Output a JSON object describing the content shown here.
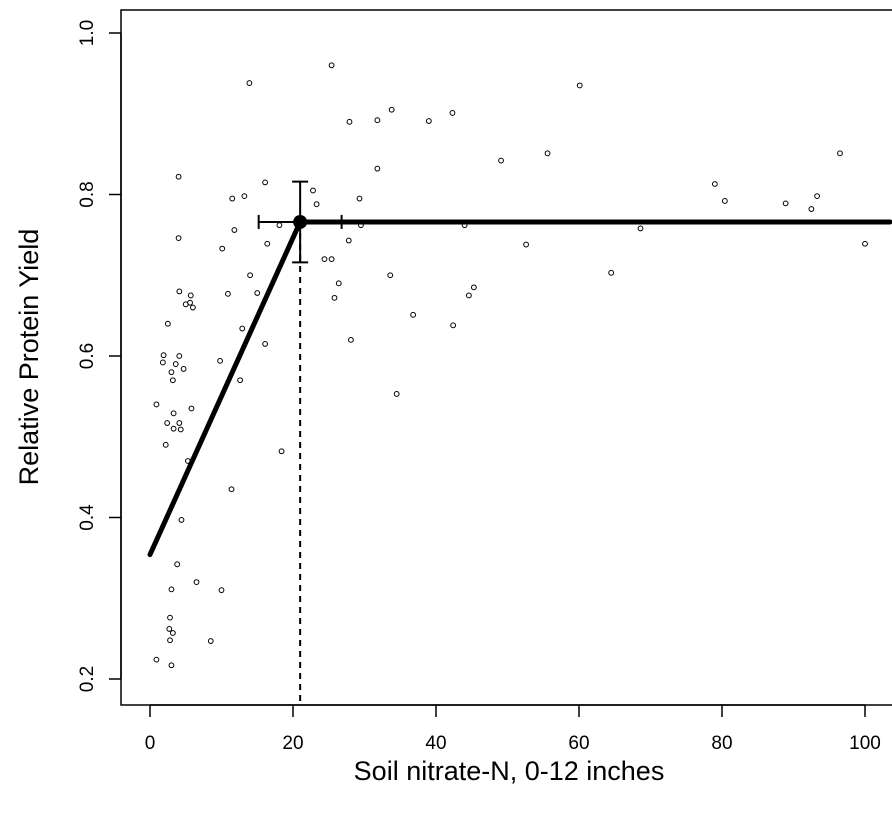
{
  "chart_data": {
    "type": "scatter",
    "xlabel": "Soil nitrate-N, 0-12 inches",
    "ylabel": "Relative Protein Yield",
    "x_ticks": [
      0,
      20,
      40,
      60,
      80,
      100
    ],
    "y_ticks": [
      0.2,
      0.4,
      0.6,
      0.8,
      1.0
    ],
    "x_tick_labels": [
      "0",
      "20",
      "40",
      "60",
      "80",
      "100"
    ],
    "y_tick_labels": [
      "0.2",
      "0.4",
      "0.6",
      "0.8",
      "1.0"
    ],
    "xlim": [
      -4,
      103.5
    ],
    "ylim": [
      0.185,
      1.03
    ],
    "grid": false,
    "points": [
      [
        0.9,
        0.224
      ],
      [
        0.9,
        0.54
      ],
      [
        1.8,
        0.592
      ],
      [
        1.9,
        0.601
      ],
      [
        2.2,
        0.49
      ],
      [
        2.4,
        0.517
      ],
      [
        2.5,
        0.64
      ],
      [
        2.7,
        0.262
      ],
      [
        2.8,
        0.276
      ],
      [
        2.8,
        0.248
      ],
      [
        3.0,
        0.217
      ],
      [
        3.0,
        0.311
      ],
      [
        3.0,
        0.58
      ],
      [
        3.2,
        0.257
      ],
      [
        3.2,
        0.57
      ],
      [
        3.3,
        0.51
      ],
      [
        3.3,
        0.529
      ],
      [
        3.6,
        0.59
      ],
      [
        3.8,
        0.342
      ],
      [
        4.0,
        0.822
      ],
      [
        4.0,
        0.746
      ],
      [
        4.1,
        0.68
      ],
      [
        4.1,
        0.6
      ],
      [
        4.1,
        0.517
      ],
      [
        4.3,
        0.509
      ],
      [
        4.4,
        0.397
      ],
      [
        4.7,
        0.584
      ],
      [
        5.0,
        0.664
      ],
      [
        5.3,
        0.47
      ],
      [
        5.6,
        0.666
      ],
      [
        5.7,
        0.675
      ],
      [
        5.8,
        0.535
      ],
      [
        6.0,
        0.66
      ],
      [
        6.5,
        0.32
      ],
      [
        8.5,
        0.247
      ],
      [
        9.8,
        0.594
      ],
      [
        10.0,
        0.31
      ],
      [
        10.1,
        0.733
      ],
      [
        10.9,
        0.677
      ],
      [
        11.4,
        0.435
      ],
      [
        11.5,
        0.795
      ],
      [
        11.8,
        0.756
      ],
      [
        12.6,
        0.57
      ],
      [
        12.9,
        0.634
      ],
      [
        13.2,
        0.798
      ],
      [
        13.9,
        0.938
      ],
      [
        14.0,
        0.7
      ],
      [
        15.0,
        0.678
      ],
      [
        16.1,
        0.615
      ],
      [
        16.1,
        0.815
      ],
      [
        16.4,
        0.739
      ],
      [
        18.1,
        0.762
      ],
      [
        18.4,
        0.482
      ],
      [
        22.8,
        0.805
      ],
      [
        23.3,
        0.788
      ],
      [
        24.4,
        0.72
      ],
      [
        25.4,
        0.72
      ],
      [
        25.4,
        0.96
      ],
      [
        25.8,
        0.672
      ],
      [
        26.4,
        0.69
      ],
      [
        27.8,
        0.743
      ],
      [
        27.9,
        0.89
      ],
      [
        28.1,
        0.62
      ],
      [
        29.3,
        0.795
      ],
      [
        29.5,
        0.762
      ],
      [
        31.8,
        0.892
      ],
      [
        31.8,
        0.832
      ],
      [
        33.6,
        0.7
      ],
      [
        33.8,
        0.905
      ],
      [
        34.5,
        0.553
      ],
      [
        36.8,
        0.651
      ],
      [
        39.0,
        0.891
      ],
      [
        42.3,
        0.901
      ],
      [
        42.4,
        0.638
      ],
      [
        44.0,
        0.762
      ],
      [
        44.6,
        0.675
      ],
      [
        45.3,
        0.685
      ],
      [
        49.1,
        0.842
      ],
      [
        52.6,
        0.738
      ],
      [
        55.6,
        0.851
      ],
      [
        60.1,
        0.935
      ],
      [
        64.5,
        0.703
      ],
      [
        68.6,
        0.758
      ],
      [
        79.0,
        0.813
      ],
      [
        80.4,
        0.792
      ],
      [
        88.9,
        0.789
      ],
      [
        92.5,
        0.782
      ],
      [
        93.3,
        0.798
      ],
      [
        96.5,
        0.851
      ],
      [
        100.0,
        0.739
      ]
    ],
    "model_line": [
      [
        0,
        0.354
      ],
      [
        21,
        0.766
      ],
      [
        103.5,
        0.766
      ]
    ],
    "joint_point": {
      "x": 21,
      "y": 0.766
    },
    "x_error": [
      15.2,
      26.8
    ],
    "y_error": [
      0.716,
      0.816
    ],
    "vline_x": 21
  }
}
